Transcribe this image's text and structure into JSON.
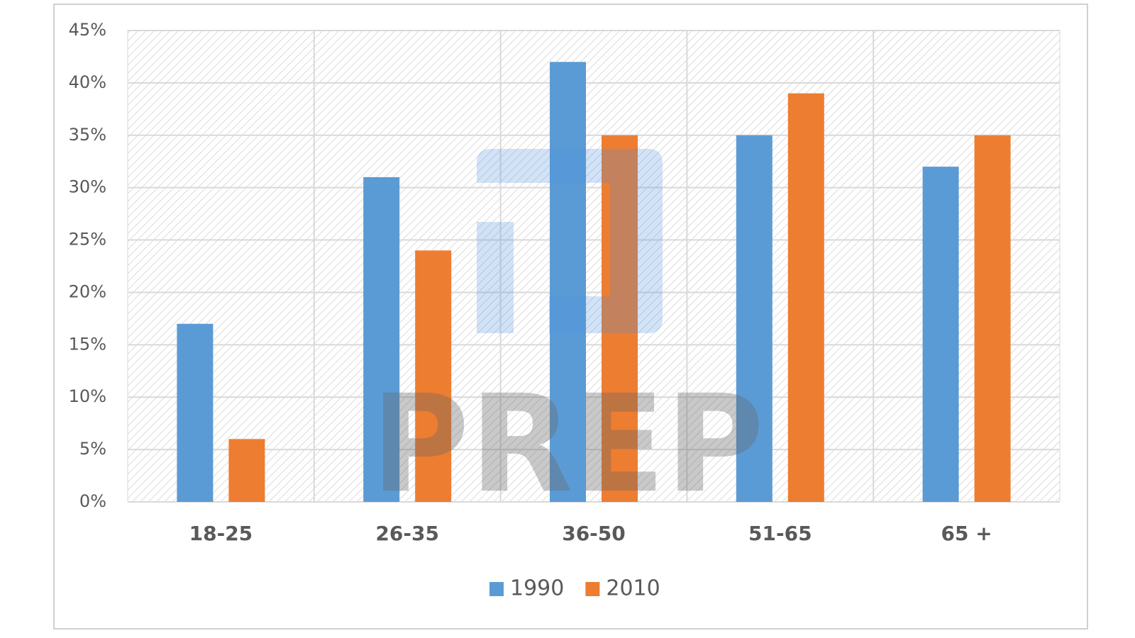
{
  "chart_data": {
    "type": "bar",
    "categories": [
      "18-25",
      "26-35",
      "36-50",
      "51-65",
      "65 +"
    ],
    "series": [
      {
        "name": "1990",
        "color": "#5b9bd5",
        "values": [
          17,
          31,
          42,
          35,
          32
        ]
      },
      {
        "name": "2010",
        "color": "#ed7d31",
        "values": [
          6,
          24,
          35,
          39,
          35
        ]
      }
    ],
    "ylim": [
      0,
      45
    ],
    "yticks": [
      {
        "value": 0,
        "label": "0%"
      },
      {
        "value": 5,
        "label": "5%"
      },
      {
        "value": 10,
        "label": "10%"
      },
      {
        "value": 15,
        "label": "15%"
      },
      {
        "value": 20,
        "label": "20%"
      },
      {
        "value": 25,
        "label": "25%"
      },
      {
        "value": 30,
        "label": "30%"
      },
      {
        "value": 35,
        "label": "35%"
      },
      {
        "value": 40,
        "label": "40%"
      },
      {
        "value": 45,
        "label": "45%"
      }
    ],
    "grid": true,
    "legend": "bottom",
    "watermark": "PREP"
  }
}
